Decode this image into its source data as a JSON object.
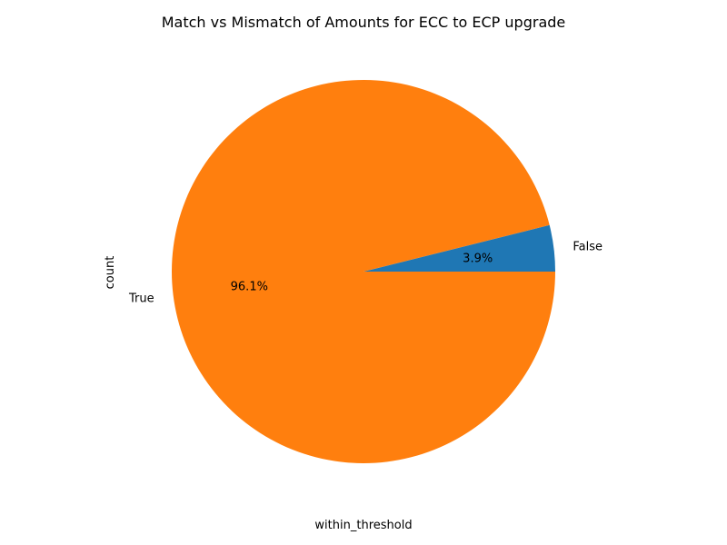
{
  "chart_data": {
    "type": "pie",
    "title": "Match vs Mismatch of Amounts for ECC to ECP upgrade",
    "xlabel": "within_threshold",
    "ylabel": "count",
    "slices": [
      {
        "label": "False",
        "percent_label": "3.9%",
        "value": 3.9,
        "color": "#1f77b4"
      },
      {
        "label": "True",
        "percent_label": "96.1%",
        "value": 96.1,
        "color": "#ff7f0e"
      }
    ],
    "legend": "none",
    "grid": false
  }
}
